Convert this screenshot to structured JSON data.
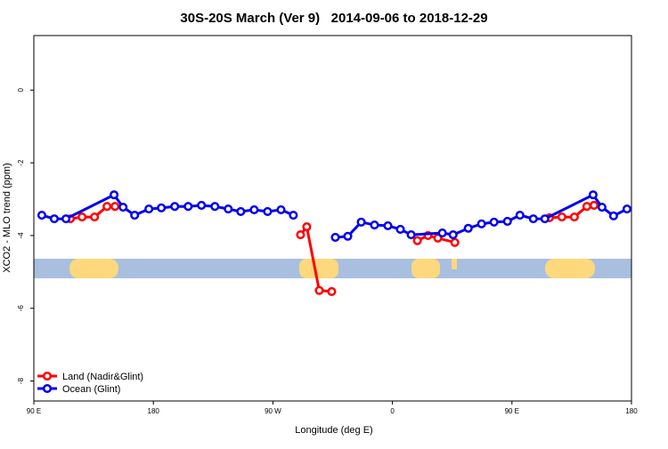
{
  "chart_data": {
    "type": "line",
    "title": "30S-20S March (Ver 9)   2014-09-06 to 2018-12-29",
    "xlabel": "Longitude (deg E)",
    "ylabel": "XCO2 - MLO trend (ppm)",
    "xlim": [
      90,
      540
    ],
    "ylim": [
      -8.55,
      1.5
    ],
    "xticks": [
      {
        "value": 90,
        "label": "90 E"
      },
      {
        "value": 180,
        "label": "180"
      },
      {
        "value": 270,
        "label": "90 W"
      },
      {
        "value": 360,
        "label": "0"
      },
      {
        "value": 450,
        "label": "90 E"
      },
      {
        "value": 540,
        "label": "180"
      }
    ],
    "yticks": [
      -8,
      -6,
      -4,
      -2,
      0
    ],
    "legend": "bottom-left",
    "series": [
      {
        "name": "Land (Nadir&Glint)",
        "color": "#ff0000",
        "x": [
          117.5,
          126.3,
          135.7,
          145.1,
          151.1,
          null,
          290.8,
          295.5,
          304.9,
          314.3,
          null,
          378.8,
          386.8,
          394.2,
          407,
          null,
          478.2,
          487.6,
          497,
          506.4,
          511.8
        ],
        "values": [
          -3.54,
          -3.49,
          -3.49,
          -3.2,
          -3.2,
          null,
          -3.98,
          -3.76,
          -5.51,
          -5.54,
          null,
          -4.14,
          -4.0,
          -4.07,
          -4.19,
          null,
          -3.51,
          -3.49,
          -3.49,
          -3.2,
          -3.17
        ]
      },
      {
        "name": "Ocean (Glint)",
        "color": "#0000ee",
        "x": [
          96,
          105.4,
          114.2,
          150.4,
          157.2,
          165.9,
          176.6,
          186,
          196.1,
          206.2,
          216.2,
          226.3,
          236.4,
          245.8,
          255.9,
          266,
          276.1,
          285.4,
          null,
          317,
          326.4,
          336.5,
          346.5,
          356.6,
          366,
          374.1,
          397.6,
          405.7,
          417.1,
          427.1,
          436.5,
          446.6,
          456,
          466.1,
          474.8,
          511.1,
          517.8,
          526.5,
          536.6
        ],
        "values": [
          -3.44,
          -3.54,
          -3.54,
          -2.88,
          -3.22,
          -3.44,
          -3.27,
          -3.24,
          -3.2,
          -3.2,
          -3.17,
          -3.2,
          -3.27,
          -3.34,
          -3.29,
          -3.34,
          -3.29,
          -3.44,
          null,
          -4.05,
          -4.02,
          -3.63,
          -3.71,
          -3.73,
          -3.83,
          -3.98,
          -3.93,
          -3.98,
          -3.8,
          -3.68,
          -3.63,
          -3.61,
          -3.44,
          -3.54,
          -3.54,
          -2.88,
          -3.22,
          -3.46,
          -3.27
        ]
      }
    ]
  }
}
